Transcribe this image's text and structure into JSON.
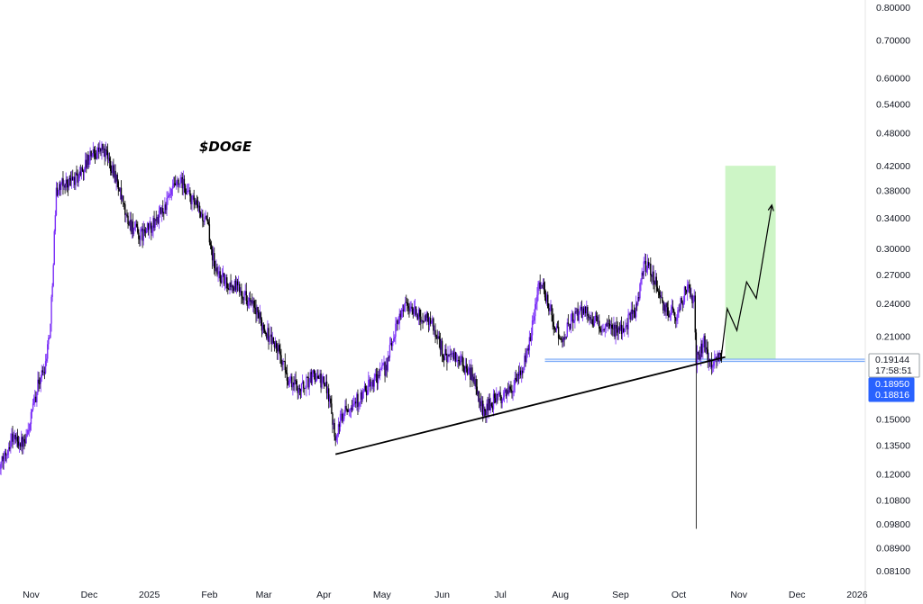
{
  "chart_data": {
    "type": "candlestick",
    "title": "$DOGE",
    "y_scale": "log",
    "ylim": [
      0.078,
      0.86
    ],
    "y_ticks": [
      "0.80000",
      "0.70000",
      "0.60000",
      "0.54000",
      "0.48000",
      "0.42000",
      "0.38000",
      "0.34000",
      "0.30000",
      "0.27000",
      "0.24000",
      "0.21000",
      "0.15000",
      "0.13500",
      "0.12000",
      "0.10800",
      "0.09800",
      "0.08900",
      "0.08100"
    ],
    "x_ticks": [
      {
        "label": "Nov",
        "date": "2024-11-01"
      },
      {
        "label": "Dec",
        "date": "2024-12-01"
      },
      {
        "label": "2025",
        "date": "2025-01-01"
      },
      {
        "label": "Feb",
        "date": "2025-02-01"
      },
      {
        "label": "Mar",
        "date": "2025-03-01"
      },
      {
        "label": "Apr",
        "date": "2025-04-01"
      },
      {
        "label": "May",
        "date": "2025-05-01"
      },
      {
        "label": "Jun",
        "date": "2025-06-01"
      },
      {
        "label": "Jul",
        "date": "2025-07-01"
      },
      {
        "label": "Aug",
        "date": "2025-08-01"
      },
      {
        "label": "Sep",
        "date": "2025-09-01"
      },
      {
        "label": "Oct",
        "date": "2025-10-01"
      },
      {
        "label": "Nov",
        "date": "2025-11-01"
      },
      {
        "label": "Dec",
        "date": "2025-12-01"
      },
      {
        "label": "2026",
        "date": "2026-01-01"
      }
    ],
    "xlim": [
      "2024-10-15",
      "2026-01-10"
    ],
    "price_path": [
      [
        "2024-10-15",
        0.12
      ],
      [
        "2024-10-22",
        0.14
      ],
      [
        "2024-10-29",
        0.135
      ],
      [
        "2024-11-05",
        0.175
      ],
      [
        "2024-11-08",
        0.185
      ],
      [
        "2024-11-11",
        0.22
      ],
      [
        "2024-11-14",
        0.38
      ],
      [
        "2024-11-18",
        0.39
      ],
      [
        "2024-11-25",
        0.4
      ],
      [
        "2024-12-02",
        0.44
      ],
      [
        "2024-12-08",
        0.45
      ],
      [
        "2024-12-14",
        0.41
      ],
      [
        "2024-12-20",
        0.34
      ],
      [
        "2024-12-27",
        0.315
      ],
      [
        "2025-01-03",
        0.33
      ],
      [
        "2025-01-10",
        0.36
      ],
      [
        "2025-01-14",
        0.385
      ],
      [
        "2025-01-18",
        0.39
      ],
      [
        "2025-01-24",
        0.36
      ],
      [
        "2025-01-31",
        0.33
      ],
      [
        "2025-02-04",
        0.275
      ],
      [
        "2025-02-10",
        0.26
      ],
      [
        "2025-02-17",
        0.255
      ],
      [
        "2025-02-24",
        0.235
      ],
      [
        "2025-03-02",
        0.215
      ],
      [
        "2025-03-08",
        0.2
      ],
      [
        "2025-03-14",
        0.175
      ],
      [
        "2025-03-20",
        0.17
      ],
      [
        "2025-03-27",
        0.18
      ],
      [
        "2025-04-03",
        0.17
      ],
      [
        "2025-04-07",
        0.14
      ],
      [
        "2025-04-12",
        0.158
      ],
      [
        "2025-04-20",
        0.163
      ],
      [
        "2025-04-26",
        0.175
      ],
      [
        "2025-05-03",
        0.185
      ],
      [
        "2025-05-09",
        0.225
      ],
      [
        "2025-05-13",
        0.24
      ],
      [
        "2025-05-20",
        0.228
      ],
      [
        "2025-05-26",
        0.225
      ],
      [
        "2025-06-02",
        0.195
      ],
      [
        "2025-06-10",
        0.19
      ],
      [
        "2025-06-17",
        0.178
      ],
      [
        "2025-06-22",
        0.155
      ],
      [
        "2025-06-28",
        0.162
      ],
      [
        "2025-07-04",
        0.166
      ],
      [
        "2025-07-10",
        0.175
      ],
      [
        "2025-07-15",
        0.195
      ],
      [
        "2025-07-21",
        0.265
      ],
      [
        "2025-07-25",
        0.245
      ],
      [
        "2025-08-01",
        0.205
      ],
      [
        "2025-08-07",
        0.225
      ],
      [
        "2025-08-14",
        0.235
      ],
      [
        "2025-08-20",
        0.22
      ],
      [
        "2025-08-27",
        0.215
      ],
      [
        "2025-09-03",
        0.218
      ],
      [
        "2025-09-09",
        0.235
      ],
      [
        "2025-09-13",
        0.28
      ],
      [
        "2025-09-18",
        0.27
      ],
      [
        "2025-09-23",
        0.235
      ],
      [
        "2025-09-30",
        0.23
      ],
      [
        "2025-10-05",
        0.255
      ],
      [
        "2025-10-09",
        0.245
      ],
      [
        "2025-10-10",
        0.19
      ],
      [
        "2025-10-14",
        0.205
      ],
      [
        "2025-10-17",
        0.188
      ],
      [
        "2025-10-21",
        0.196
      ],
      [
        "2025-10-23",
        0.1914
      ]
    ],
    "trendline": {
      "from": [
        "2025-04-07",
        0.13
      ],
      "to": [
        "2025-10-25",
        0.193
      ]
    },
    "support_line": {
      "from": [
        "2025-07-24",
        0.1914
      ],
      "value_high": 0.1914,
      "value_low": 0.1895
    },
    "projection_path": [
      [
        "2025-10-23",
        0.194
      ],
      [
        "2025-10-26",
        0.235
      ],
      [
        "2025-10-31",
        0.215
      ],
      [
        "2025-11-05",
        0.262
      ],
      [
        "2025-11-10",
        0.245
      ],
      [
        "2025-11-18",
        0.358
      ]
    ],
    "target_zone": {
      "from": "2025-10-25",
      "to": "2025-11-20",
      "top": 0.42,
      "bottom": 0.1914
    },
    "wick_low": {
      "date": "2025-10-10",
      "value": 0.096
    },
    "price_labels": {
      "current_price": "0.19144",
      "countdown": "17:58:51",
      "level_1": "0.18950",
      "level_2": "0.18816"
    },
    "colors": {
      "up_candle": "#7b2ff7",
      "down_candle": "#000000",
      "trendline": "#000000",
      "support": "#6fa3f7",
      "target_zone": "#cdf5c6",
      "projection": "#000000",
      "badge_blue": "#2962ff"
    }
  }
}
